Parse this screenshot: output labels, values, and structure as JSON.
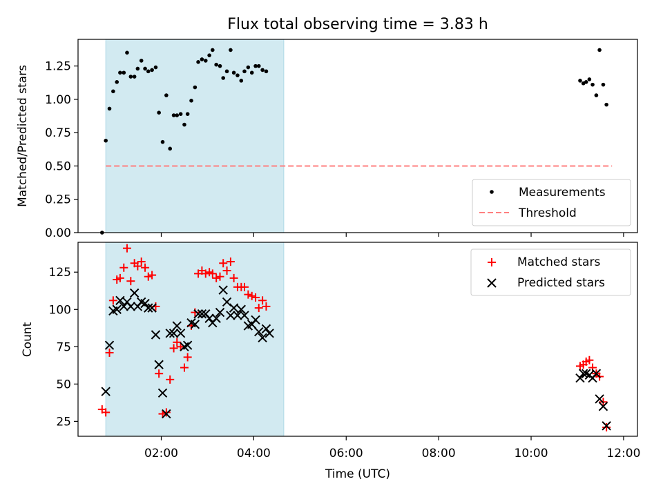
{
  "chart_data": {
    "title": "Flux total observing time = 3.83 h",
    "xlabel": "Time (UTC)",
    "xlim": [
      0.2,
      12.3
    ],
    "x_ticks": [
      {
        "value": 2,
        "label": "02:00"
      },
      {
        "value": 4,
        "label": "04:00"
      },
      {
        "value": 6,
        "label": "06:00"
      },
      {
        "value": 8,
        "label": "08:00"
      },
      {
        "value": 10,
        "label": "10:00"
      },
      {
        "value": 12,
        "label": "12:00"
      }
    ],
    "shaded_span": {
      "x_start": 0.8,
      "x_end": 4.65,
      "color": "#add8e6"
    },
    "top_panel": {
      "type": "scatter",
      "ylabel": "Matched/Predicted stars",
      "ylim": [
        0,
        1.45
      ],
      "y_ticks": [
        0.0,
        0.25,
        0.5,
        0.75,
        1.0,
        1.25
      ],
      "y_tick_labels": [
        "0.00",
        "0.25",
        "0.50",
        "0.75",
        "1.00",
        "1.25"
      ],
      "threshold": {
        "name": "Threshold",
        "value": 0.5,
        "x_range": [
          0.8,
          11.75
        ],
        "color": "#ff7f7f"
      },
      "series": [
        {
          "name": "Measurements",
          "color": "#000000",
          "points": [
            [
              0.72,
              0.0
            ],
            [
              0.8,
              0.69
            ],
            [
              0.88,
              0.93
            ],
            [
              0.96,
              1.06
            ],
            [
              1.04,
              1.13
            ],
            [
              1.11,
              1.2
            ],
            [
              1.19,
              1.2
            ],
            [
              1.26,
              1.35
            ],
            [
              1.34,
              1.17
            ],
            [
              1.42,
              1.17
            ],
            [
              1.49,
              1.23
            ],
            [
              1.57,
              1.29
            ],
            [
              1.65,
              1.23
            ],
            [
              1.72,
              1.21
            ],
            [
              1.8,
              1.22
            ],
            [
              1.88,
              1.24
            ],
            [
              1.95,
              0.9
            ],
            [
              2.03,
              0.68
            ],
            [
              2.11,
              1.03
            ],
            [
              2.19,
              0.63
            ],
            [
              2.27,
              0.88
            ],
            [
              2.34,
              0.88
            ],
            [
              2.42,
              0.89
            ],
            [
              2.5,
              0.81
            ],
            [
              2.57,
              0.89
            ],
            [
              2.65,
              0.99
            ],
            [
              2.73,
              1.09
            ],
            [
              2.8,
              1.28
            ],
            [
              2.88,
              1.3
            ],
            [
              2.96,
              1.29
            ],
            [
              3.04,
              1.33
            ],
            [
              3.11,
              1.37
            ],
            [
              3.19,
              1.26
            ],
            [
              3.27,
              1.25
            ],
            [
              3.34,
              1.16
            ],
            [
              3.42,
              1.21
            ],
            [
              3.5,
              1.37
            ],
            [
              3.57,
              1.2
            ],
            [
              3.65,
              1.18
            ],
            [
              3.73,
              1.14
            ],
            [
              3.8,
              1.21
            ],
            [
              3.88,
              1.24
            ],
            [
              3.96,
              1.2
            ],
            [
              4.04,
              1.25
            ],
            [
              4.11,
              1.25
            ],
            [
              4.19,
              1.22
            ],
            [
              4.27,
              1.21
            ],
            [
              11.06,
              1.14
            ],
            [
              11.13,
              1.12
            ],
            [
              11.19,
              1.13
            ],
            [
              11.26,
              1.15
            ],
            [
              11.33,
              1.11
            ],
            [
              11.41,
              1.03
            ],
            [
              11.48,
              1.37
            ],
            [
              11.56,
              1.11
            ],
            [
              11.63,
              0.96
            ]
          ]
        }
      ],
      "legend": {
        "position": "lower right",
        "entries": [
          "Measurements",
          "Threshold"
        ]
      }
    },
    "bottom_panel": {
      "type": "scatter",
      "ylabel": "Count",
      "ylim": [
        15,
        145
      ],
      "y_ticks": [
        25,
        50,
        75,
        100,
        125
      ],
      "y_tick_labels": [
        "25",
        "50",
        "75",
        "100",
        "125"
      ],
      "series": [
        {
          "name": "Matched stars",
          "marker": "+",
          "color": "#ff0000",
          "points": [
            [
              0.72,
              33
            ],
            [
              0.8,
              31
            ],
            [
              0.88,
              71
            ],
            [
              0.96,
              106
            ],
            [
              1.04,
              120
            ],
            [
              1.11,
              121
            ],
            [
              1.19,
              128
            ],
            [
              1.26,
              141
            ],
            [
              1.34,
              119
            ],
            [
              1.42,
              131
            ],
            [
              1.49,
              129
            ],
            [
              1.57,
              132
            ],
            [
              1.65,
              128
            ],
            [
              1.72,
              122
            ],
            [
              1.8,
              123
            ],
            [
              1.88,
              102
            ],
            [
              1.95,
              57
            ],
            [
              2.03,
              30
            ],
            [
              2.11,
              31
            ],
            [
              2.19,
              53
            ],
            [
              2.27,
              74
            ],
            [
              2.34,
              78
            ],
            [
              2.42,
              75
            ],
            [
              2.5,
              61
            ],
            [
              2.57,
              68
            ],
            [
              2.65,
              89
            ],
            [
              2.73,
              98
            ],
            [
              2.8,
              124
            ],
            [
              2.88,
              126
            ],
            [
              2.96,
              124
            ],
            [
              3.04,
              125
            ],
            [
              3.11,
              124
            ],
            [
              3.19,
              121
            ],
            [
              3.27,
              122
            ],
            [
              3.34,
              131
            ],
            [
              3.42,
              126
            ],
            [
              3.5,
              132
            ],
            [
              3.57,
              121
            ],
            [
              3.65,
              115
            ],
            [
              3.73,
              115
            ],
            [
              3.8,
              115
            ],
            [
              3.88,
              110
            ],
            [
              3.96,
              109
            ],
            [
              4.04,
              108
            ],
            [
              4.11,
              101
            ],
            [
              4.19,
              106
            ],
            [
              4.27,
              102
            ],
            [
              11.06,
              62
            ],
            [
              11.13,
              63
            ],
            [
              11.19,
              65
            ],
            [
              11.26,
              66
            ],
            [
              11.33,
              61
            ],
            [
              11.41,
              57
            ],
            [
              11.48,
              55
            ],
            [
              11.56,
              38
            ],
            [
              11.63,
              21
            ]
          ]
        },
        {
          "name": "Predicted stars",
          "marker": "x",
          "color": "#000000",
          "points": [
            [
              0.8,
              45
            ],
            [
              0.88,
              76
            ],
            [
              0.96,
              99
            ],
            [
              1.04,
              100
            ],
            [
              1.11,
              106
            ],
            [
              1.19,
              102
            ],
            [
              1.26,
              105
            ],
            [
              1.34,
              102
            ],
            [
              1.42,
              111
            ],
            [
              1.49,
              102
            ],
            [
              1.57,
              105
            ],
            [
              1.65,
              104
            ],
            [
              1.72,
              101
            ],
            [
              1.8,
              101
            ],
            [
              1.88,
              83
            ],
            [
              1.95,
              63
            ],
            [
              2.03,
              44
            ],
            [
              2.11,
              30
            ],
            [
              2.19,
              84
            ],
            [
              2.27,
              84
            ],
            [
              2.34,
              89
            ],
            [
              2.42,
              84
            ],
            [
              2.5,
              75
            ],
            [
              2.57,
              76
            ],
            [
              2.65,
              91
            ],
            [
              2.73,
              90
            ],
            [
              2.8,
              97
            ],
            [
              2.88,
              97
            ],
            [
              2.96,
              97
            ],
            [
              3.04,
              94
            ],
            [
              3.11,
              91
            ],
            [
              3.19,
              94
            ],
            [
              3.27,
              98
            ],
            [
              3.34,
              113
            ],
            [
              3.42,
              105
            ],
            [
              3.5,
              96
            ],
            [
              3.57,
              101
            ],
            [
              3.65,
              96
            ],
            [
              3.73,
              100
            ],
            [
              3.8,
              96
            ],
            [
              3.88,
              89
            ],
            [
              3.96,
              90
            ],
            [
              4.04,
              93
            ],
            [
              4.11,
              85
            ],
            [
              4.19,
              81
            ],
            [
              4.27,
              87
            ],
            [
              4.34,
              84
            ],
            [
              11.06,
              54
            ],
            [
              11.13,
              57
            ],
            [
              11.19,
              57
            ],
            [
              11.26,
              56
            ],
            [
              11.33,
              54
            ],
            [
              11.41,
              57
            ],
            [
              11.48,
              40
            ],
            [
              11.56,
              35
            ],
            [
              11.63,
              22
            ]
          ]
        }
      ],
      "legend": {
        "position": "upper right",
        "entries": [
          "Matched stars",
          "Predicted stars"
        ]
      }
    }
  }
}
